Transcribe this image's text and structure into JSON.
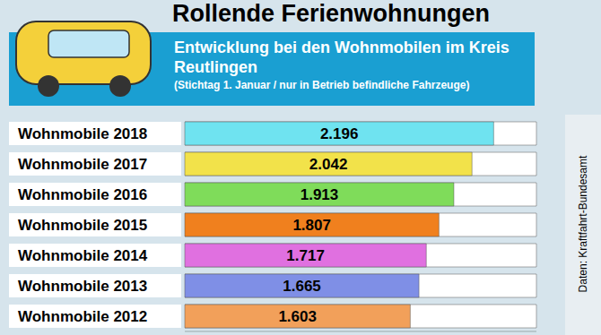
{
  "chart_data": {
    "type": "bar",
    "orientation": "horizontal",
    "title": "Rollende Ferienwohnungen",
    "subtitle": "Entwicklung bei den Wohnmobilen im Kreis Reutlingen",
    "note": "(Stichtag 1. Januar / nur in Betrieb befindliche Fahrzeuge)",
    "source": "Daten: Kraftfahrt-Bundesamt",
    "categories": [
      "Wohnmobile 2018",
      "Wohnmobile 2017",
      "Wohnmobile 2016",
      "Wohnmobile 2015",
      "Wohnmobile 2014",
      "Wohnmobile 2013",
      "Wohnmobile 2012"
    ],
    "values": [
      2196,
      2042,
      1913,
      1807,
      1717,
      1665,
      1603
    ],
    "value_labels": [
      "2.196",
      "2.042",
      "1.913",
      "1.807",
      "1.717",
      "1.665",
      "1.603"
    ],
    "colors": [
      "#6fe3f0",
      "#f2e24a",
      "#7fdc5a",
      "#f0801e",
      "#e070e0",
      "#7f8fe6",
      "#f2a05a"
    ],
    "xlim": [
      0,
      2500
    ],
    "data_labels": true,
    "tick_labels": false,
    "grid": false
  }
}
